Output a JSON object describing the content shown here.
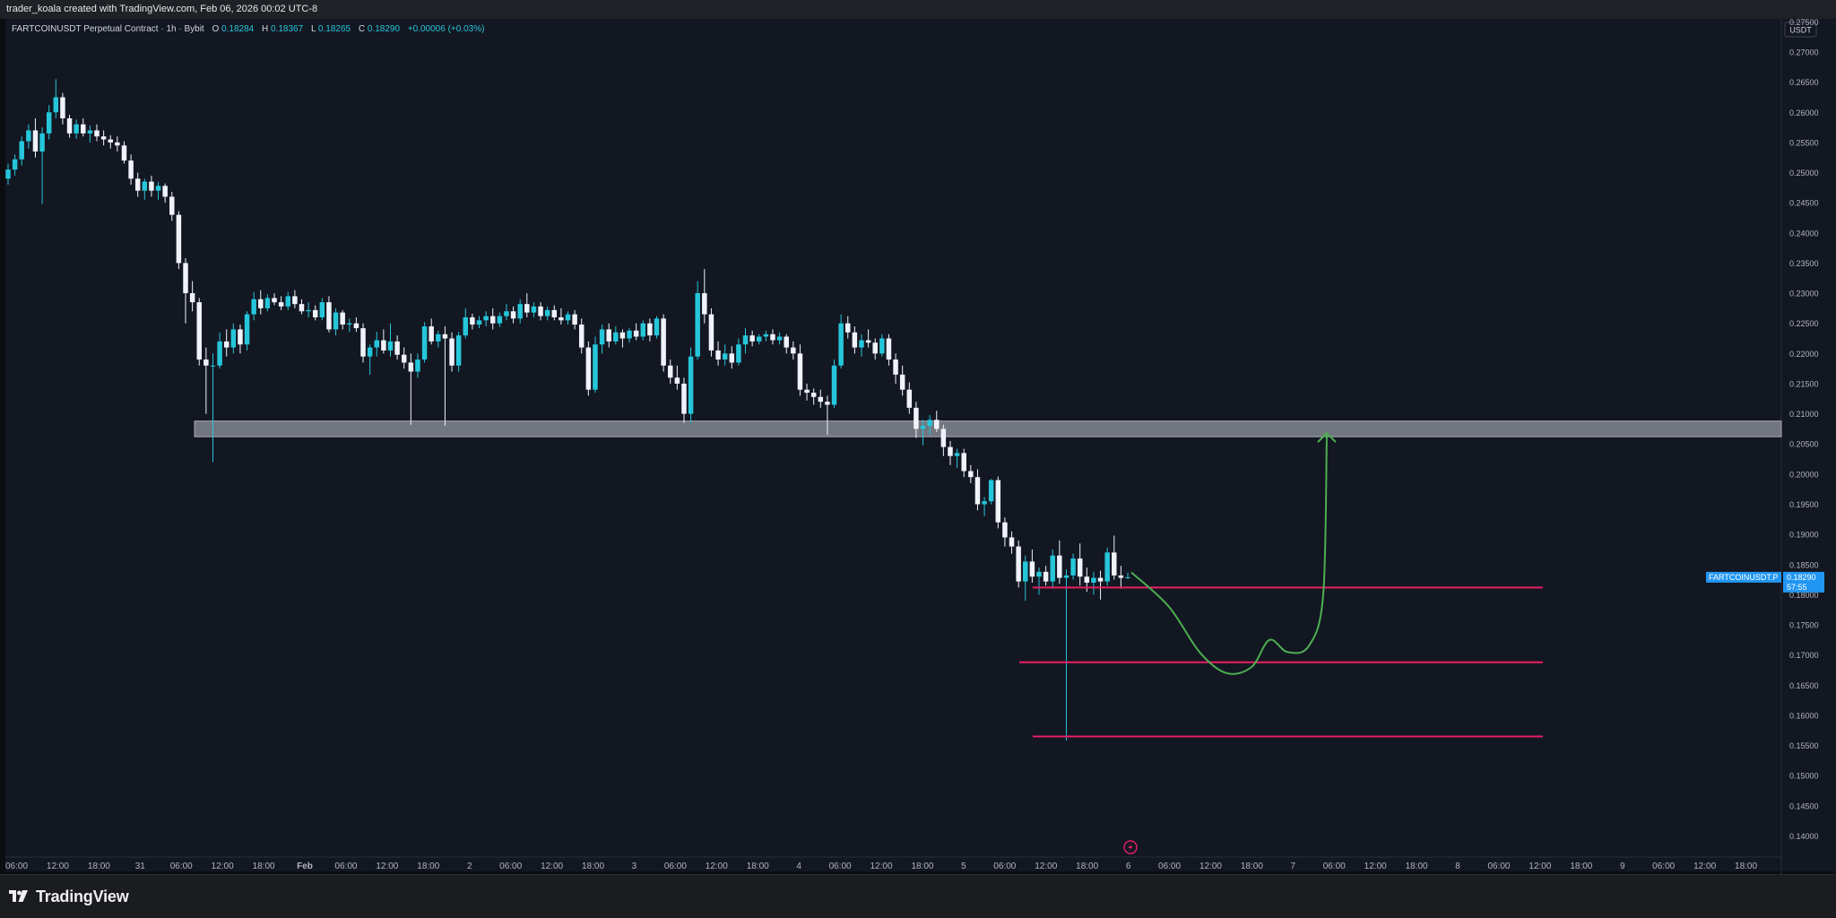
{
  "header": {
    "attribution": "trader_koala created with TradingView.com, Feb 06, 2026 00:02 UTC-8"
  },
  "legend": {
    "symbol_line": "FARTCOINUSDT Perpetual Contract · 1h · Bybit",
    "o_label": "O",
    "o_value": "0.18284",
    "h_label": "H",
    "h_value": "0.18367",
    "l_label": "L",
    "l_value": "0.18265",
    "c_label": "C",
    "c_value": "0.18290",
    "change": "+0.00006 (+0.03%)"
  },
  "price_axis": {
    "currency": "USDT",
    "last_price_label": "FARTCOINUSDT.P",
    "last_price": "0.18290",
    "countdown": "57:55"
  },
  "footer": {
    "brand": "TradingView"
  },
  "colors": {
    "background": "#131722",
    "up": "#26c6da",
    "down": "#f0f3fa",
    "level_line": "#e91e63",
    "zone": "#b2b5be",
    "projection": "#4caf50",
    "price_tag": "#2196f3"
  },
  "chart_data": {
    "type": "candlestick",
    "timeframe": "1h",
    "y_ticks": [
      "0.27500",
      "0.27000",
      "0.26500",
      "0.26000",
      "0.25500",
      "0.25000",
      "0.24500",
      "0.24000",
      "0.23500",
      "0.23000",
      "0.22500",
      "0.22000",
      "0.21500",
      "0.21000",
      "0.20500",
      "0.20000",
      "0.19500",
      "0.19000",
      "0.18500",
      "0.18000",
      "0.17500",
      "0.17000",
      "0.16500",
      "0.16000",
      "0.15500",
      "0.15000",
      "0.14500",
      "0.14000"
    ],
    "y_range": [
      0.1365,
      0.2755
    ],
    "x_ticks": [
      "06:00",
      "12:00",
      "18:00",
      "31",
      "06:00",
      "12:00",
      "18:00",
      "Feb",
      "06:00",
      "12:00",
      "18:00",
      "2",
      "06:00",
      "12:00",
      "18:00",
      "3",
      "06:00",
      "12:00",
      "18:00",
      "4",
      "06:00",
      "12:00",
      "18:00",
      "5",
      "06:00",
      "12:00",
      "18:00",
      "6",
      "06:00",
      "12:00",
      "18:00",
      "7",
      "06:00",
      "12:00",
      "18:00",
      "8",
      "06:00",
      "12:00",
      "18:00",
      "9",
      "06:00",
      "12:00",
      "18:00"
    ],
    "x_tick_bold": [
      "Feb"
    ],
    "ohlc": [
      [
        0.249,
        0.2515,
        0.248,
        0.2505
      ],
      [
        0.2505,
        0.253,
        0.2495,
        0.2522
      ],
      [
        0.2522,
        0.256,
        0.2512,
        0.2552
      ],
      [
        0.2552,
        0.258,
        0.254,
        0.257
      ],
      [
        0.257,
        0.259,
        0.2525,
        0.2535
      ],
      [
        0.2535,
        0.2575,
        0.2448,
        0.2565
      ],
      [
        0.2565,
        0.2612,
        0.2555,
        0.26
      ],
      [
        0.26,
        0.2655,
        0.259,
        0.2625
      ],
      [
        0.2625,
        0.2632,
        0.258,
        0.259
      ],
      [
        0.259,
        0.2596,
        0.2558,
        0.2565
      ],
      [
        0.2565,
        0.2588,
        0.2556,
        0.258
      ],
      [
        0.258,
        0.259,
        0.256,
        0.2565
      ],
      [
        0.2565,
        0.2578,
        0.255,
        0.257
      ],
      [
        0.257,
        0.258,
        0.2552,
        0.256
      ],
      [
        0.256,
        0.257,
        0.2545,
        0.2555
      ],
      [
        0.2555,
        0.2562,
        0.254,
        0.255
      ],
      [
        0.255,
        0.256,
        0.2535,
        0.2545
      ],
      [
        0.2545,
        0.2552,
        0.2515,
        0.252
      ],
      [
        0.252,
        0.253,
        0.248,
        0.249
      ],
      [
        0.249,
        0.25,
        0.246,
        0.247
      ],
      [
        0.247,
        0.249,
        0.2455,
        0.2485
      ],
      [
        0.2485,
        0.2495,
        0.246,
        0.247
      ],
      [
        0.247,
        0.2485,
        0.2455,
        0.2478
      ],
      [
        0.2478,
        0.2482,
        0.245,
        0.246
      ],
      [
        0.246,
        0.2468,
        0.242,
        0.243
      ],
      [
        0.243,
        0.2436,
        0.234,
        0.235
      ],
      [
        0.235,
        0.2358,
        0.225,
        0.23
      ],
      [
        0.23,
        0.232,
        0.227,
        0.2285
      ],
      [
        0.2285,
        0.2292,
        0.218,
        0.219
      ],
      [
        0.219,
        0.221,
        0.21,
        0.218
      ],
      [
        0.218,
        0.22,
        0.202,
        0.218
      ],
      [
        0.218,
        0.2235,
        0.2175,
        0.222
      ],
      [
        0.222,
        0.224,
        0.2195,
        0.221
      ],
      [
        0.221,
        0.225,
        0.22,
        0.224
      ],
      [
        0.224,
        0.2248,
        0.22,
        0.2215
      ],
      [
        0.2215,
        0.227,
        0.2205,
        0.2265
      ],
      [
        0.2265,
        0.2302,
        0.2255,
        0.229
      ],
      [
        0.229,
        0.2305,
        0.2265,
        0.2275
      ],
      [
        0.2275,
        0.2298,
        0.227,
        0.2292
      ],
      [
        0.2292,
        0.23,
        0.228,
        0.2285
      ],
      [
        0.2285,
        0.2295,
        0.2272,
        0.2278
      ],
      [
        0.2278,
        0.2302,
        0.2272,
        0.2295
      ],
      [
        0.2295,
        0.2305,
        0.2275,
        0.2282
      ],
      [
        0.2282,
        0.229,
        0.2265,
        0.227
      ],
      [
        0.227,
        0.2285,
        0.226,
        0.2272
      ],
      [
        0.2272,
        0.228,
        0.2255,
        0.226
      ],
      [
        0.226,
        0.2292,
        0.2255,
        0.2285
      ],
      [
        0.2285,
        0.2295,
        0.2235,
        0.224
      ],
      [
        0.224,
        0.2275,
        0.223,
        0.2268
      ],
      [
        0.2268,
        0.2272,
        0.224,
        0.2248
      ],
      [
        0.2248,
        0.2258,
        0.2236,
        0.225
      ],
      [
        0.225,
        0.226,
        0.2236,
        0.2242
      ],
      [
        0.2242,
        0.225,
        0.2185,
        0.2195
      ],
      [
        0.2195,
        0.2215,
        0.2165,
        0.221
      ],
      [
        0.221,
        0.2236,
        0.2195,
        0.2222
      ],
      [
        0.2222,
        0.224,
        0.22,
        0.2205
      ],
      [
        0.2205,
        0.225,
        0.2195,
        0.222
      ],
      [
        0.222,
        0.223,
        0.219,
        0.2198
      ],
      [
        0.2198,
        0.221,
        0.2175,
        0.2185
      ],
      [
        0.2185,
        0.22,
        0.2082,
        0.217
      ],
      [
        0.217,
        0.22,
        0.216,
        0.219
      ],
      [
        0.219,
        0.2252,
        0.2185,
        0.2245
      ],
      [
        0.2245,
        0.2258,
        0.2215,
        0.222
      ],
      [
        0.222,
        0.2238,
        0.221,
        0.2232
      ],
      [
        0.2232,
        0.2245,
        0.208,
        0.2225
      ],
      [
        0.2225,
        0.2235,
        0.217,
        0.218
      ],
      [
        0.218,
        0.2236,
        0.217,
        0.223
      ],
      [
        0.223,
        0.2275,
        0.2225,
        0.226
      ],
      [
        0.226,
        0.2266,
        0.224,
        0.2248
      ],
      [
        0.2248,
        0.2262,
        0.2242,
        0.2255
      ],
      [
        0.2255,
        0.227,
        0.2245,
        0.2262
      ],
      [
        0.2262,
        0.2275,
        0.224,
        0.225
      ],
      [
        0.225,
        0.2268,
        0.2244,
        0.2262
      ],
      [
        0.2262,
        0.2282,
        0.2255,
        0.227
      ],
      [
        0.227,
        0.2278,
        0.225,
        0.2258
      ],
      [
        0.2258,
        0.229,
        0.225,
        0.2282
      ],
      [
        0.2282,
        0.23,
        0.226,
        0.2268
      ],
      [
        0.2268,
        0.2285,
        0.226,
        0.2278
      ],
      [
        0.2278,
        0.2285,
        0.2255,
        0.2262
      ],
      [
        0.2262,
        0.2278,
        0.2255,
        0.2272
      ],
      [
        0.2272,
        0.228,
        0.2255,
        0.226
      ],
      [
        0.226,
        0.2275,
        0.2248,
        0.2255
      ],
      [
        0.2255,
        0.227,
        0.2248,
        0.2265
      ],
      [
        0.2265,
        0.2272,
        0.224,
        0.2248
      ],
      [
        0.2248,
        0.2258,
        0.22,
        0.221
      ],
      [
        0.221,
        0.222,
        0.213,
        0.214
      ],
      [
        0.214,
        0.2228,
        0.2135,
        0.2215
      ],
      [
        0.2215,
        0.2248,
        0.22,
        0.224
      ],
      [
        0.224,
        0.225,
        0.221,
        0.222
      ],
      [
        0.222,
        0.2245,
        0.2215,
        0.2235
      ],
      [
        0.2235,
        0.224,
        0.221,
        0.2225
      ],
      [
        0.2225,
        0.2242,
        0.2218,
        0.2238
      ],
      [
        0.2238,
        0.225,
        0.2222,
        0.2228
      ],
      [
        0.2228,
        0.2255,
        0.2222,
        0.225
      ],
      [
        0.225,
        0.2258,
        0.222,
        0.223
      ],
      [
        0.223,
        0.2262,
        0.2225,
        0.2258
      ],
      [
        0.2258,
        0.2265,
        0.217,
        0.218
      ],
      [
        0.218,
        0.219,
        0.215,
        0.216
      ],
      [
        0.216,
        0.218,
        0.214,
        0.215
      ],
      [
        0.215,
        0.216,
        0.2085,
        0.21
      ],
      [
        0.21,
        0.221,
        0.2085,
        0.2195
      ],
      [
        0.2195,
        0.232,
        0.219,
        0.23
      ],
      [
        0.23,
        0.234,
        0.225,
        0.2265
      ],
      [
        0.2265,
        0.2275,
        0.2195,
        0.2205
      ],
      [
        0.2205,
        0.222,
        0.218,
        0.219
      ],
      [
        0.219,
        0.2215,
        0.218,
        0.22
      ],
      [
        0.22,
        0.2212,
        0.2175,
        0.2185
      ],
      [
        0.2185,
        0.2225,
        0.218,
        0.2215
      ],
      [
        0.2215,
        0.2242,
        0.22,
        0.223
      ],
      [
        0.223,
        0.2238,
        0.2212,
        0.222
      ],
      [
        0.222,
        0.2232,
        0.2215,
        0.2228
      ],
      [
        0.2228,
        0.2238,
        0.222,
        0.2232
      ],
      [
        0.2232,
        0.224,
        0.2215,
        0.2222
      ],
      [
        0.2222,
        0.2235,
        0.2215,
        0.2228
      ],
      [
        0.2228,
        0.2232,
        0.22,
        0.221
      ],
      [
        0.221,
        0.222,
        0.219,
        0.22
      ],
      [
        0.22,
        0.2215,
        0.213,
        0.214
      ],
      [
        0.214,
        0.215,
        0.2122,
        0.2135
      ],
      [
        0.2135,
        0.2142,
        0.2115,
        0.2128
      ],
      [
        0.2128,
        0.214,
        0.211,
        0.212
      ],
      [
        0.212,
        0.213,
        0.2065,
        0.2115
      ],
      [
        0.2115,
        0.219,
        0.211,
        0.218
      ],
      [
        0.218,
        0.2265,
        0.2175,
        0.225
      ],
      [
        0.225,
        0.2262,
        0.2225,
        0.2235
      ],
      [
        0.2235,
        0.2245,
        0.22,
        0.221
      ],
      [
        0.221,
        0.2232,
        0.2195,
        0.2222
      ],
      [
        0.2222,
        0.224,
        0.221,
        0.2218
      ],
      [
        0.2218,
        0.2225,
        0.219,
        0.22
      ],
      [
        0.22,
        0.2232,
        0.2195,
        0.2225
      ],
      [
        0.2225,
        0.2232,
        0.218,
        0.219
      ],
      [
        0.219,
        0.22,
        0.215,
        0.2165
      ],
      [
        0.2165,
        0.218,
        0.213,
        0.214
      ],
      [
        0.214,
        0.2152,
        0.21,
        0.211
      ],
      [
        0.211,
        0.212,
        0.206,
        0.2075
      ],
      [
        0.2075,
        0.209,
        0.2048,
        0.208
      ],
      [
        0.208,
        0.2098,
        0.2065,
        0.209
      ],
      [
        0.209,
        0.2105,
        0.207,
        0.2075
      ],
      [
        0.2075,
        0.2082,
        0.203,
        0.2045
      ],
      [
        0.2045,
        0.2055,
        0.2015,
        0.203
      ],
      [
        0.203,
        0.2042,
        0.201,
        0.2035
      ],
      [
        0.2035,
        0.2042,
        0.1995,
        0.2005
      ],
      [
        0.2005,
        0.2015,
        0.1985,
        0.1995
      ],
      [
        0.1995,
        0.2008,
        0.194,
        0.195
      ],
      [
        0.195,
        0.1962,
        0.193,
        0.1955
      ],
      [
        0.1955,
        0.1992,
        0.195,
        0.199
      ],
      [
        0.199,
        0.1996,
        0.191,
        0.192
      ],
      [
        0.192,
        0.1928,
        0.188,
        0.1895
      ],
      [
        0.1895,
        0.1905,
        0.1868,
        0.188
      ],
      [
        0.188,
        0.189,
        0.1812,
        0.1822
      ],
      [
        0.1822,
        0.1865,
        0.179,
        0.1855
      ],
      [
        0.1855,
        0.1875,
        0.182,
        0.183
      ],
      [
        0.183,
        0.1845,
        0.18,
        0.1838
      ],
      [
        0.1838,
        0.1848,
        0.1815,
        0.1822
      ],
      [
        0.1822,
        0.1875,
        0.181,
        0.1865
      ],
      [
        0.1865,
        0.189,
        0.1818,
        0.1828
      ],
      [
        0.1828,
        0.1842,
        0.1558,
        0.1832
      ],
      [
        0.1832,
        0.1868,
        0.1825,
        0.186
      ],
      [
        0.186,
        0.1885,
        0.1815,
        0.183
      ],
      [
        0.183,
        0.1845,
        0.1805,
        0.182
      ],
      [
        0.182,
        0.1838,
        0.18,
        0.1828
      ],
      [
        0.1828,
        0.184,
        0.1792,
        0.1822
      ],
      [
        0.1822,
        0.1878,
        0.1815,
        0.187
      ],
      [
        0.187,
        0.1898,
        0.1825,
        0.1832
      ],
      [
        0.1832,
        0.1848,
        0.181,
        0.1828
      ],
      [
        0.18284,
        0.18367,
        0.18265,
        0.1829
      ]
    ],
    "levels": [
      {
        "price": 0.1812,
        "type": "horizontal-line",
        "color": "#e91e63"
      },
      {
        "price": 0.1688,
        "type": "horizontal-line",
        "color": "#e91e63"
      },
      {
        "price": 0.1565,
        "type": "horizontal-line",
        "color": "#e91e63"
      }
    ],
    "zone": {
      "top": 0.2088,
      "bottom": 0.2062,
      "color": "#b2b5be"
    },
    "projection": [
      [
        0.1837,
        "now"
      ],
      [
        0.178,
        "+6h"
      ],
      [
        0.1705,
        "+11h"
      ],
      [
        0.167,
        "+15h"
      ],
      [
        0.168,
        "+19h"
      ],
      [
        0.1725,
        "+23h"
      ],
      [
        0.1705,
        "+27h"
      ],
      [
        0.1715,
        "+31h"
      ],
      [
        0.18,
        "+33h"
      ],
      [
        0.2068,
        "+34h"
      ]
    ]
  }
}
